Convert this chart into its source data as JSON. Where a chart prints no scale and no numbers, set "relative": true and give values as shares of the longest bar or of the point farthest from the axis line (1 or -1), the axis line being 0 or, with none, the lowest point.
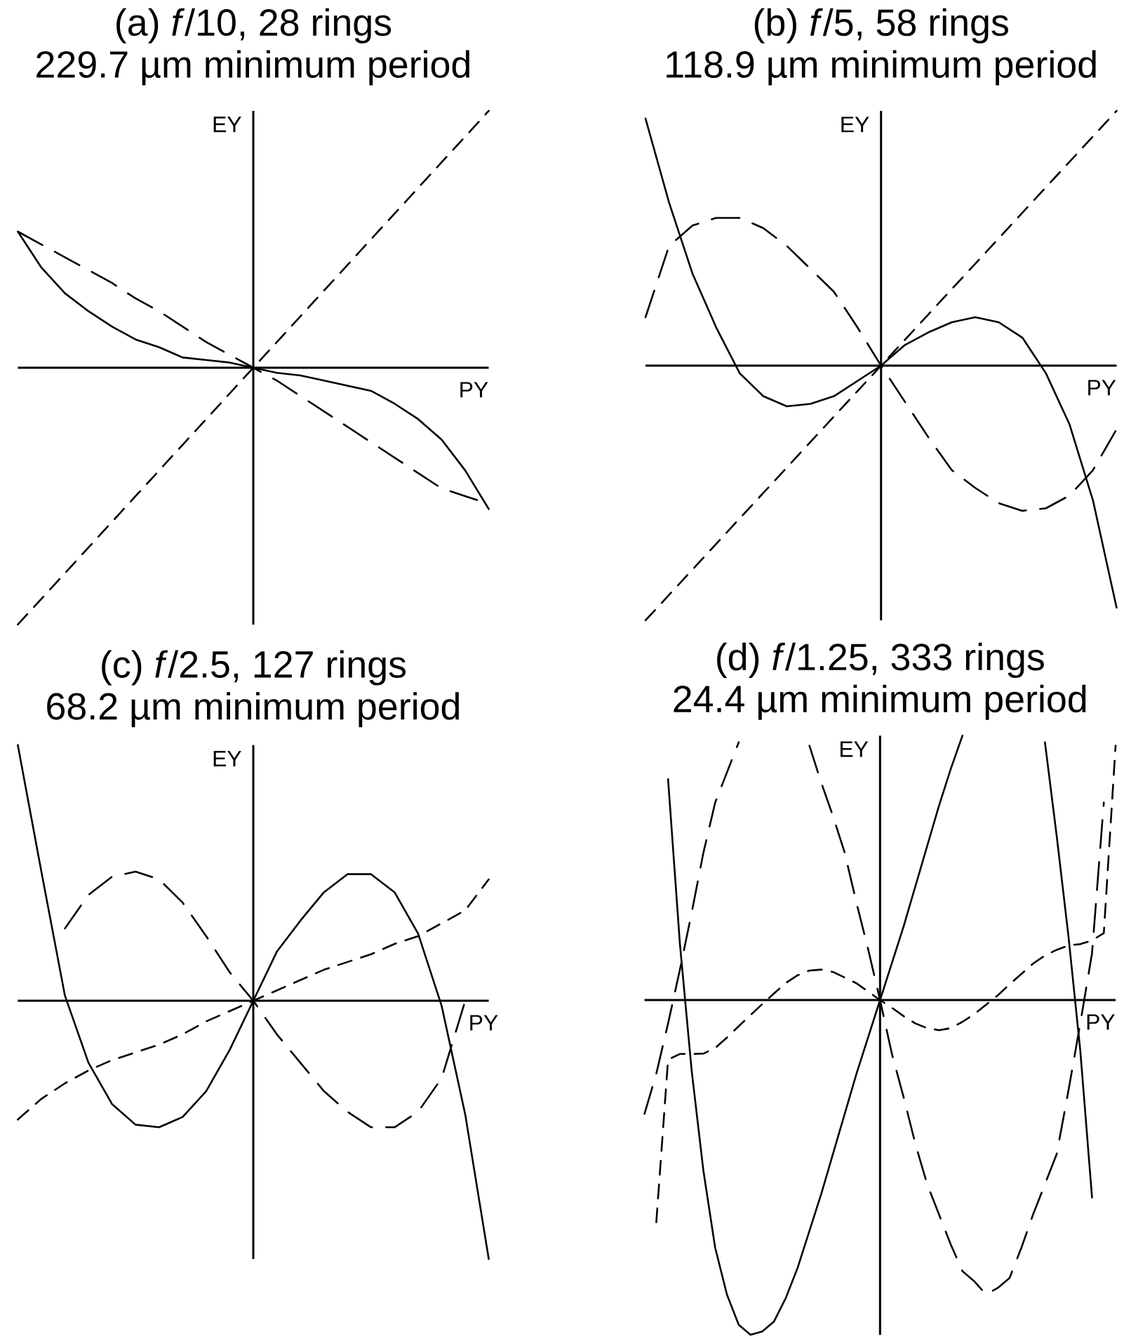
{
  "chart_data": [
    {
      "type": "line",
      "title": "(a) *f*/10, 28 rings",
      "subtitle": "229.7 µm minimum period",
      "xlabel": "PY",
      "ylabel": "EY",
      "relative": true,
      "categories": [
        null,
        null,
        null,
        null,
        null,
        null,
        null,
        null,
        null,
        null,
        null,
        null,
        null,
        null,
        null,
        null,
        null,
        null,
        null,
        null,
        null
      ],
      "series": [
        {
          "color": "#000000",
          "line_style": "solid",
          "values": [
            0.53,
            0.39,
            0.29,
            0.22,
            0.16,
            0.11,
            0.08,
            0.04,
            0.03,
            0.02,
            0,
            -0.02,
            -0.03,
            -0.05,
            -0.07,
            -0.09,
            -0.14,
            -0.2,
            -0.28,
            -0.4,
            -0.55
          ]
        },
        {
          "color": "#000000",
          "line_style": "long dashed",
          "values": [
            0.53,
            0.48,
            0.43,
            0.38,
            0.33,
            0.27,
            0.22,
            0.16,
            0.1,
            0.05,
            0,
            -0.05,
            -0.11,
            -0.17,
            -0.23,
            -0.29,
            -0.35,
            -0.41,
            -0.47,
            -0.5,
            -0.53
          ]
        },
        {
          "color": "#000000",
          "line_style": "dashed",
          "values": [
            -1,
            -0.9,
            -0.8,
            -0.7,
            -0.6,
            -0.5,
            -0.4,
            -0.3,
            -0.2,
            -0.1,
            0,
            0.1,
            0.2,
            0.3,
            0.4,
            0.5,
            0.6,
            0.7,
            0.8,
            0.9,
            1
          ]
        }
      ]
    },
    {
      "type": "line",
      "title": "(b) *f*/5, 58 rings",
      "subtitle": "118.9 µm minimum period",
      "xlabel": "PY",
      "ylabel": "EY",
      "relative": true,
      "categories": [
        null,
        null,
        null,
        null,
        null,
        null,
        null,
        null,
        null,
        null,
        null,
        null,
        null,
        null,
        null,
        null,
        null,
        null,
        null,
        null,
        null
      ],
      "series": [
        {
          "color": "#000000",
          "line_style": "solid",
          "values": [
            0.97,
            0.64,
            0.36,
            0.15,
            -0.03,
            -0.12,
            -0.16,
            -0.15,
            -0.12,
            -0.06,
            0,
            0.08,
            0.13,
            0.17,
            0.19,
            0.17,
            0.11,
            -0.03,
            -0.23,
            -0.53,
            -0.95
          ]
        },
        {
          "color": "#000000",
          "line_style": "long dashed",
          "values": [
            0.19,
            0.47,
            0.55,
            0.58,
            0.58,
            0.54,
            0.47,
            0.38,
            0.29,
            0.15,
            0,
            -0.14,
            -0.28,
            -0.41,
            -0.48,
            -0.54,
            -0.57,
            -0.56,
            -0.51,
            -0.41,
            -0.25
          ]
        },
        {
          "color": "#000000",
          "line_style": "dashed",
          "values": [
            -1,
            -0.9,
            -0.8,
            -0.7,
            -0.6,
            -0.5,
            -0.4,
            -0.3,
            -0.2,
            -0.1,
            0,
            0.1,
            0.2,
            0.3,
            0.4,
            0.5,
            0.6,
            0.7,
            0.8,
            0.9,
            1
          ]
        }
      ]
    },
    {
      "type": "line",
      "title": "(c) *f*/2.5, 127 rings",
      "subtitle": "68.2 µm minimum period",
      "xlabel": "PY",
      "ylabel": "EY",
      "relative": true,
      "categories": [
        null,
        null,
        null,
        null,
        null,
        null,
        null,
        null,
        null,
        null,
        null,
        null,
        null,
        null,
        null,
        null,
        null,
        null,
        null,
        null,
        null
      ],
      "series": [
        {
          "color": "#000000",
          "line_style": "solid",
          "values": [
            0.99,
            0.5,
            0.02,
            -0.24,
            -0.4,
            -0.48,
            -0.49,
            -0.45,
            -0.35,
            -0.19,
            0,
            0.19,
            0.31,
            0.42,
            0.49,
            0.49,
            0.42,
            0.26,
            -0.02,
            -0.44,
            -1
          ]
        },
        {
          "color": "#000000",
          "line_style": "long dashed",
          "values": [
            null,
            null,
            0.28,
            0.41,
            0.48,
            0.5,
            0.47,
            0.38,
            0.25,
            0.11,
            0,
            -0.13,
            -0.24,
            -0.35,
            -0.43,
            -0.49,
            -0.49,
            -0.43,
            -0.3,
            0,
            null
          ]
        },
        {
          "color": "#000000",
          "line_style": "dashed",
          "values": [
            -0.46,
            -0.38,
            -0.32,
            -0.27,
            -0.23,
            -0.2,
            -0.17,
            -0.13,
            -0.08,
            -0.04,
            0,
            0.04,
            0.08,
            0.12,
            0.15,
            0.18,
            0.22,
            0.25,
            0.3,
            0.35,
            0.47
          ]
        }
      ]
    },
    {
      "type": "line",
      "title": "(d) *f*/1.25, 333 rings",
      "subtitle": "24.4 µm minimum period",
      "xlabel": "PY",
      "ylabel": "EY",
      "relative": true,
      "categories": [
        null,
        null,
        null,
        null,
        null,
        null,
        null,
        null,
        null,
        null,
        null,
        null,
        null,
        null,
        null,
        null,
        null,
        null,
        null,
        null,
        null,
        null,
        null,
        null,
        null,
        null,
        null,
        null,
        null,
        null,
        null,
        null,
        null,
        null,
        null,
        null,
        null,
        null,
        null,
        null,
        null
      ],
      "series": [
        {
          "color": "#000000",
          "line_style": "solid",
          "values": [
            null,
            null,
            0.66,
            0.17,
            -0.21,
            -0.51,
            -0.74,
            -0.88,
            -0.97,
            -1,
            -0.99,
            -0.96,
            -0.89,
            -0.8,
            -0.69,
            -0.58,
            -0.46,
            -0.34,
            -0.22,
            -0.11,
            0,
            0.11,
            0.22,
            0.34,
            0.46,
            0.58,
            0.69,
            0.79,
            null,
            null,
            null,
            null,
            null,
            null,
            null,
            null,
            null,
            null,
            null,
            null,
            null
          ]
        },
        {
          "color": "#000000",
          "line_style": "solid",
          "values": [
            null,
            null,
            null,
            null,
            null,
            null,
            null,
            null,
            null,
            null,
            null,
            null,
            null,
            null,
            null,
            null,
            null,
            null,
            null,
            null,
            null,
            null,
            null,
            null,
            null,
            null,
            null,
            null,
            null,
            null,
            null,
            null,
            null,
            null,
            0.77,
            0.49,
            0.19,
            -0.15,
            -0.59,
            null,
            null
          ]
        },
        {
          "color": "#000000",
          "line_style": "long dashed",
          "values": [
            -0.34,
            -0.22,
            -0.07,
            0.09,
            0.26,
            0.44,
            0.59,
            0.68,
            0.77,
            null,
            null,
            null,
            null,
            null,
            null,
            null,
            null,
            null,
            null,
            null,
            null,
            null,
            null,
            null,
            null,
            null,
            null,
            null,
            null,
            null,
            null,
            null,
            null,
            null,
            null,
            null,
            null,
            null,
            null,
            null,
            null
          ]
        },
        {
          "color": "#000000",
          "line_style": "long dashed",
          "values": [
            null,
            null,
            null,
            null,
            null,
            null,
            null,
            null,
            null,
            null,
            null,
            null,
            null,
            null,
            0.76,
            0.65,
            0.55,
            0.44,
            0.29,
            0.15,
            0,
            -0.16,
            -0.29,
            -0.43,
            -0.55,
            -0.64,
            -0.73,
            -0.81,
            -0.84,
            -0.88,
            -0.86,
            -0.83,
            -0.74,
            -0.64,
            -0.55,
            -0.46,
            -0.27,
            -0.07,
            0.14,
            0.59,
            null
          ]
        },
        {
          "color": "#000000",
          "line_style": "dashed",
          "values": [
            null,
            -0.664,
            -0.178,
            -0.161,
            -0.161,
            -0.16,
            -0.143,
            -0.112,
            -0.078,
            -0.045,
            -0.012,
            0.02,
            0.051,
            0.074,
            0.088,
            0.091,
            0.084,
            0.067,
            0.05,
            0.025,
            0,
            -0.023,
            -0.048,
            -0.07,
            -0.084,
            -0.09,
            -0.084,
            -0.065,
            -0.042,
            -0.014,
            0.014,
            0.047,
            0.078,
            0.109,
            0.133,
            0.15,
            0.163,
            0.167,
            0.178,
            0.2,
            0.76
          ]
        }
      ]
    }
  ]
}
